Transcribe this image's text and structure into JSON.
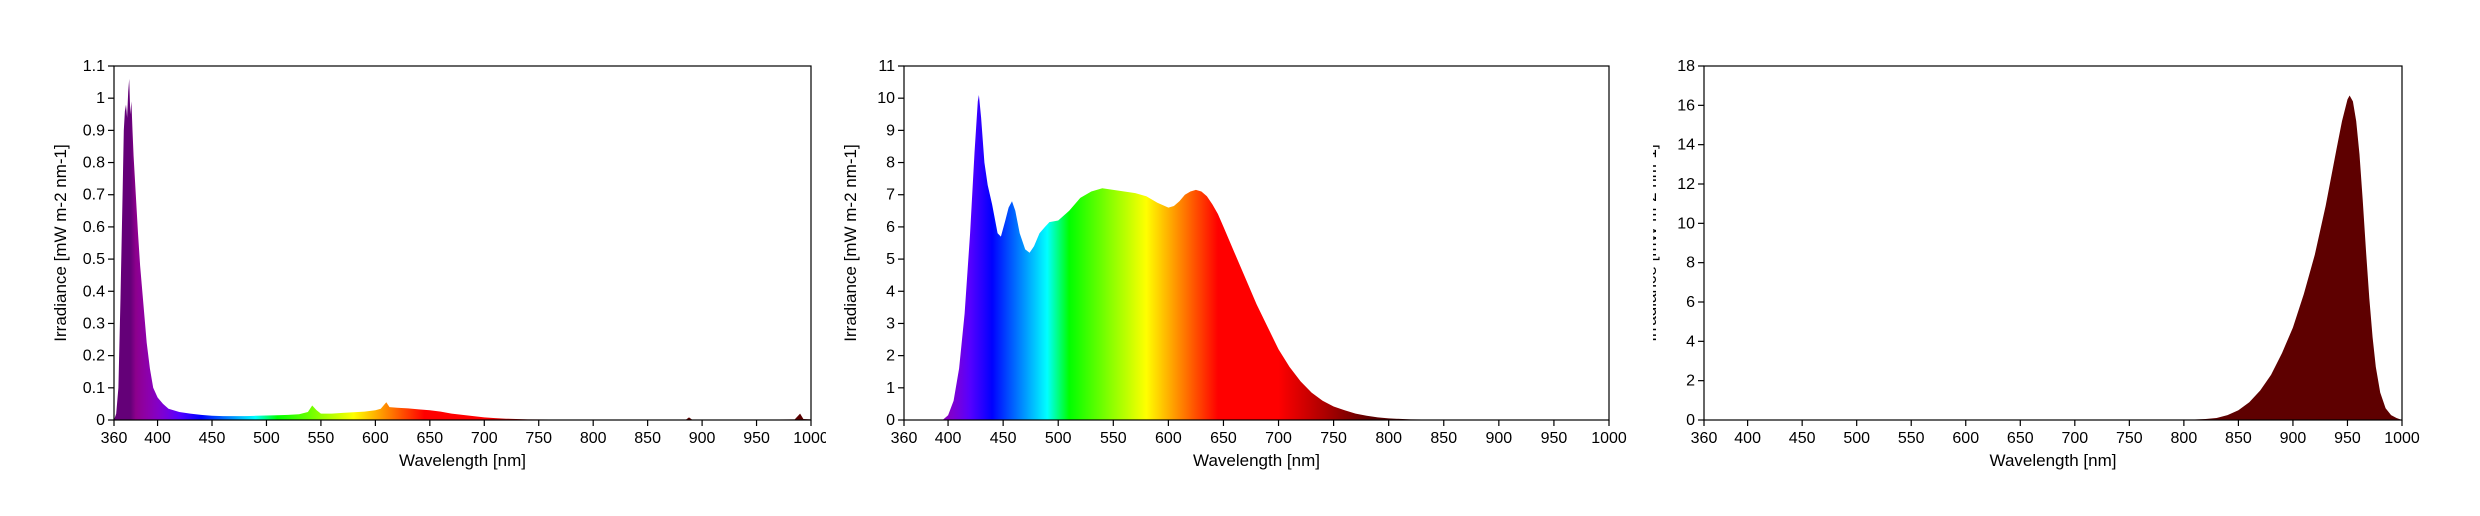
{
  "chart_data": [
    {
      "type": "area",
      "xlabel": "Wavelength [nm]",
      "ylabel": "Irradiance [mW m-2 nm-1]",
      "xlim": [
        360,
        1000
      ],
      "ylim": [
        0,
        1.1
      ],
      "xticks": [
        360,
        400,
        450,
        500,
        550,
        600,
        650,
        700,
        750,
        800,
        850,
        900,
        950,
        1000
      ],
      "yticks": [
        0,
        0.1,
        0.2,
        0.3,
        0.4,
        0.5,
        0.6,
        0.7,
        0.8,
        0.9,
        1,
        1.1
      ],
      "fill": "spectral",
      "points": [
        [
          360,
          0
        ],
        [
          362,
          0.02
        ],
        [
          364,
          0.1
        ],
        [
          366,
          0.38
        ],
        [
          368,
          0.72
        ],
        [
          369,
          0.9
        ],
        [
          370,
          0.96
        ],
        [
          371,
          0.98
        ],
        [
          372,
          0.94
        ],
        [
          373,
          1.02
        ],
        [
          374,
          1.06
        ],
        [
          375,
          0.95
        ],
        [
          376,
          0.99
        ],
        [
          377,
          0.9
        ],
        [
          378,
          0.82
        ],
        [
          379,
          0.76
        ],
        [
          380,
          0.7
        ],
        [
          382,
          0.58
        ],
        [
          384,
          0.48
        ],
        [
          386,
          0.4
        ],
        [
          388,
          0.32
        ],
        [
          390,
          0.24
        ],
        [
          393,
          0.16
        ],
        [
          396,
          0.1
        ],
        [
          400,
          0.07
        ],
        [
          405,
          0.05
        ],
        [
          410,
          0.035
        ],
        [
          420,
          0.025
        ],
        [
          430,
          0.02
        ],
        [
          440,
          0.016
        ],
        [
          450,
          0.013
        ],
        [
          460,
          0.012
        ],
        [
          470,
          0.012
        ],
        [
          480,
          0.012
        ],
        [
          490,
          0.013
        ],
        [
          500,
          0.014
        ],
        [
          510,
          0.015
        ],
        [
          520,
          0.016
        ],
        [
          530,
          0.018
        ],
        [
          538,
          0.025
        ],
        [
          542,
          0.045
        ],
        [
          546,
          0.03
        ],
        [
          550,
          0.02
        ],
        [
          560,
          0.02
        ],
        [
          570,
          0.022
        ],
        [
          580,
          0.024
        ],
        [
          590,
          0.026
        ],
        [
          600,
          0.03
        ],
        [
          605,
          0.035
        ],
        [
          610,
          0.055
        ],
        [
          613,
          0.04
        ],
        [
          620,
          0.038
        ],
        [
          630,
          0.036
        ],
        [
          640,
          0.033
        ],
        [
          650,
          0.03
        ],
        [
          660,
          0.026
        ],
        [
          670,
          0.02
        ],
        [
          680,
          0.016
        ],
        [
          690,
          0.012
        ],
        [
          700,
          0.008
        ],
        [
          710,
          0.006
        ],
        [
          720,
          0.004
        ],
        [
          740,
          0.002
        ],
        [
          760,
          0.0015
        ],
        [
          800,
          0.001
        ],
        [
          850,
          0.001
        ],
        [
          885,
          0.001
        ],
        [
          888,
          0.008
        ],
        [
          891,
          0.001
        ],
        [
          940,
          0.001
        ],
        [
          985,
          0.002
        ],
        [
          990,
          0.02
        ],
        [
          993,
          0.003
        ],
        [
          1000,
          0.002
        ]
      ]
    },
    {
      "type": "area",
      "xlabel": "Wavelength [nm]",
      "ylabel": "Irradiance [mW m-2 nm-1]",
      "xlim": [
        360,
        1000
      ],
      "ylim": [
        0,
        11
      ],
      "xticks": [
        360,
        400,
        450,
        500,
        550,
        600,
        650,
        700,
        750,
        800,
        850,
        900,
        950,
        1000
      ],
      "yticks": [
        0,
        1,
        2,
        3,
        4,
        5,
        6,
        7,
        8,
        9,
        10,
        11
      ],
      "fill": "spectral",
      "points": [
        [
          395,
          0
        ],
        [
          400,
          0.15
        ],
        [
          405,
          0.6
        ],
        [
          410,
          1.6
        ],
        [
          415,
          3.3
        ],
        [
          420,
          5.8
        ],
        [
          424,
          8.3
        ],
        [
          427,
          9.9
        ],
        [
          428,
          10.1
        ],
        [
          430,
          9.4
        ],
        [
          433,
          8.0
        ],
        [
          436,
          7.3
        ],
        [
          440,
          6.7
        ],
        [
          445,
          5.8
        ],
        [
          448,
          5.7
        ],
        [
          452,
          6.2
        ],
        [
          455,
          6.6
        ],
        [
          458,
          6.8
        ],
        [
          461,
          6.5
        ],
        [
          465,
          5.8
        ],
        [
          470,
          5.3
        ],
        [
          474,
          5.2
        ],
        [
          478,
          5.4
        ],
        [
          483,
          5.8
        ],
        [
          488,
          6.0
        ],
        [
          492,
          6.15
        ],
        [
          500,
          6.2
        ],
        [
          510,
          6.5
        ],
        [
          520,
          6.9
        ],
        [
          530,
          7.1
        ],
        [
          540,
          7.2
        ],
        [
          550,
          7.15
        ],
        [
          560,
          7.1
        ],
        [
          570,
          7.05
        ],
        [
          580,
          6.95
        ],
        [
          590,
          6.75
        ],
        [
          600,
          6.6
        ],
        [
          605,
          6.65
        ],
        [
          610,
          6.8
        ],
        [
          615,
          7.0
        ],
        [
          620,
          7.1
        ],
        [
          625,
          7.15
        ],
        [
          630,
          7.1
        ],
        [
          635,
          6.95
        ],
        [
          640,
          6.7
        ],
        [
          645,
          6.4
        ],
        [
          650,
          6.0
        ],
        [
          660,
          5.2
        ],
        [
          670,
          4.4
        ],
        [
          680,
          3.6
        ],
        [
          690,
          2.9
        ],
        [
          700,
          2.2
        ],
        [
          710,
          1.65
        ],
        [
          720,
          1.2
        ],
        [
          730,
          0.85
        ],
        [
          740,
          0.6
        ],
        [
          750,
          0.42
        ],
        [
          760,
          0.3
        ],
        [
          770,
          0.2
        ],
        [
          780,
          0.13
        ],
        [
          790,
          0.08
        ],
        [
          800,
          0.05
        ],
        [
          820,
          0.02
        ],
        [
          850,
          0.01
        ],
        [
          1000,
          0
        ]
      ]
    },
    {
      "type": "area",
      "xlabel": "Wavelength [nm]",
      "ylabel": "Irradiance [mW m-2 nm-1]",
      "xlim": [
        360,
        1000
      ],
      "ylim": [
        0,
        18
      ],
      "xticks": [
        360,
        400,
        450,
        500,
        550,
        600,
        650,
        700,
        750,
        800,
        850,
        900,
        950,
        1000
      ],
      "yticks": [
        0,
        2,
        4,
        6,
        8,
        10,
        12,
        14,
        16,
        18
      ],
      "fill": "#5e0000",
      "points": [
        [
          800,
          0
        ],
        [
          820,
          0.05
        ],
        [
          830,
          0.1
        ],
        [
          840,
          0.25
        ],
        [
          850,
          0.5
        ],
        [
          860,
          0.9
        ],
        [
          870,
          1.5
        ],
        [
          880,
          2.3
        ],
        [
          890,
          3.4
        ],
        [
          900,
          4.7
        ],
        [
          910,
          6.4
        ],
        [
          920,
          8.4
        ],
        [
          930,
          10.9
        ],
        [
          940,
          13.8
        ],
        [
          945,
          15.2
        ],
        [
          950,
          16.3
        ],
        [
          952,
          16.5
        ],
        [
          955,
          16.2
        ],
        [
          958,
          15.2
        ],
        [
          961,
          13.5
        ],
        [
          964,
          11.2
        ],
        [
          967,
          8.6
        ],
        [
          970,
          6.2
        ],
        [
          973,
          4.2
        ],
        [
          976,
          2.7
        ],
        [
          980,
          1.4
        ],
        [
          985,
          0.6
        ],
        [
          990,
          0.25
        ],
        [
          995,
          0.1
        ],
        [
          1000,
          0
        ]
      ]
    }
  ]
}
